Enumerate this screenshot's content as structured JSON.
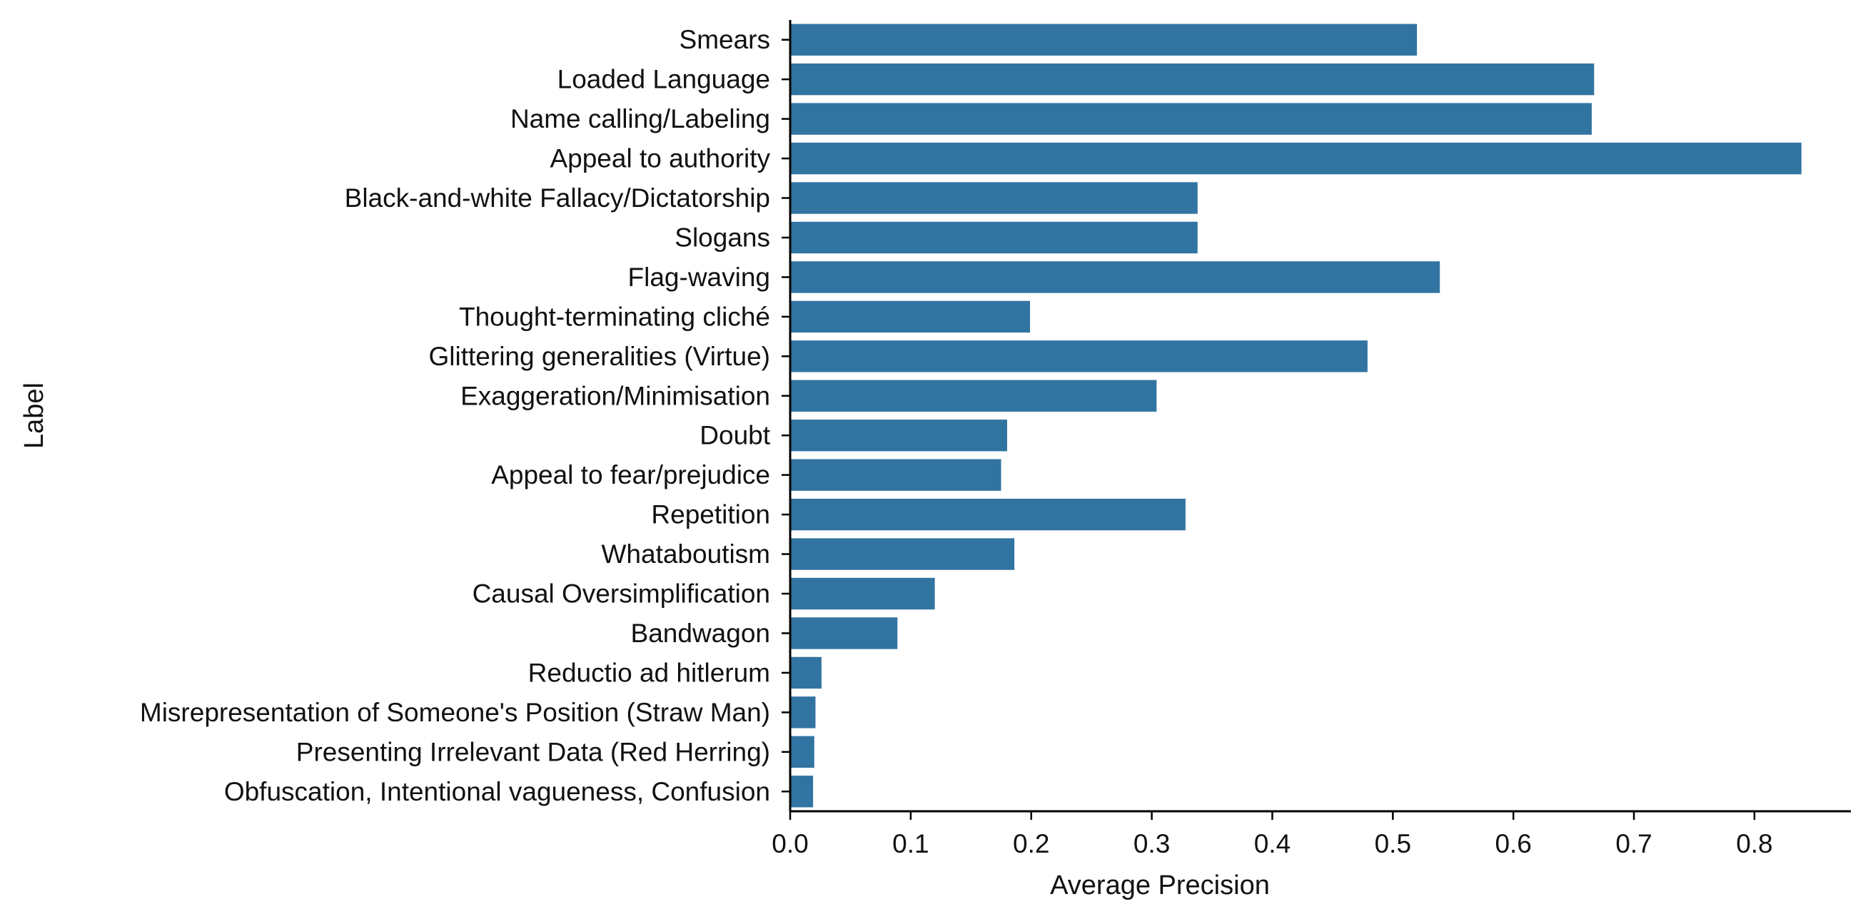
{
  "chart_data": {
    "type": "bar",
    "orientation": "horizontal",
    "xlabel": "Average Precision",
    "ylabel": "Label",
    "xlim": [
      0.0,
      0.88
    ],
    "xticks": [
      "0.0",
      "0.1",
      "0.2",
      "0.3",
      "0.4",
      "0.5",
      "0.6",
      "0.7",
      "0.8"
    ],
    "grid": false,
    "bar_color": "#3274a1",
    "categories": [
      "Smears",
      "Loaded Language",
      "Name calling/Labeling",
      "Appeal to authority",
      "Black-and-white Fallacy/Dictatorship",
      "Slogans",
      "Flag-waving",
      "Thought-terminating cliché",
      "Glittering generalities (Virtue)",
      "Exaggeration/Minimisation",
      "Doubt",
      "Appeal to fear/prejudice",
      "Repetition",
      "Whataboutism",
      "Causal Oversimplification",
      "Bandwagon",
      "Reductio ad hitlerum",
      "Misrepresentation of Someone's Position (Straw Man)",
      "Presenting Irrelevant Data (Red Herring)",
      "Obfuscation, Intentional vagueness, Confusion"
    ],
    "values": [
      0.52,
      0.667,
      0.665,
      0.839,
      0.338,
      0.338,
      0.539,
      0.199,
      0.479,
      0.304,
      0.18,
      0.175,
      0.328,
      0.186,
      0.12,
      0.089,
      0.026,
      0.021,
      0.02,
      0.019
    ]
  }
}
